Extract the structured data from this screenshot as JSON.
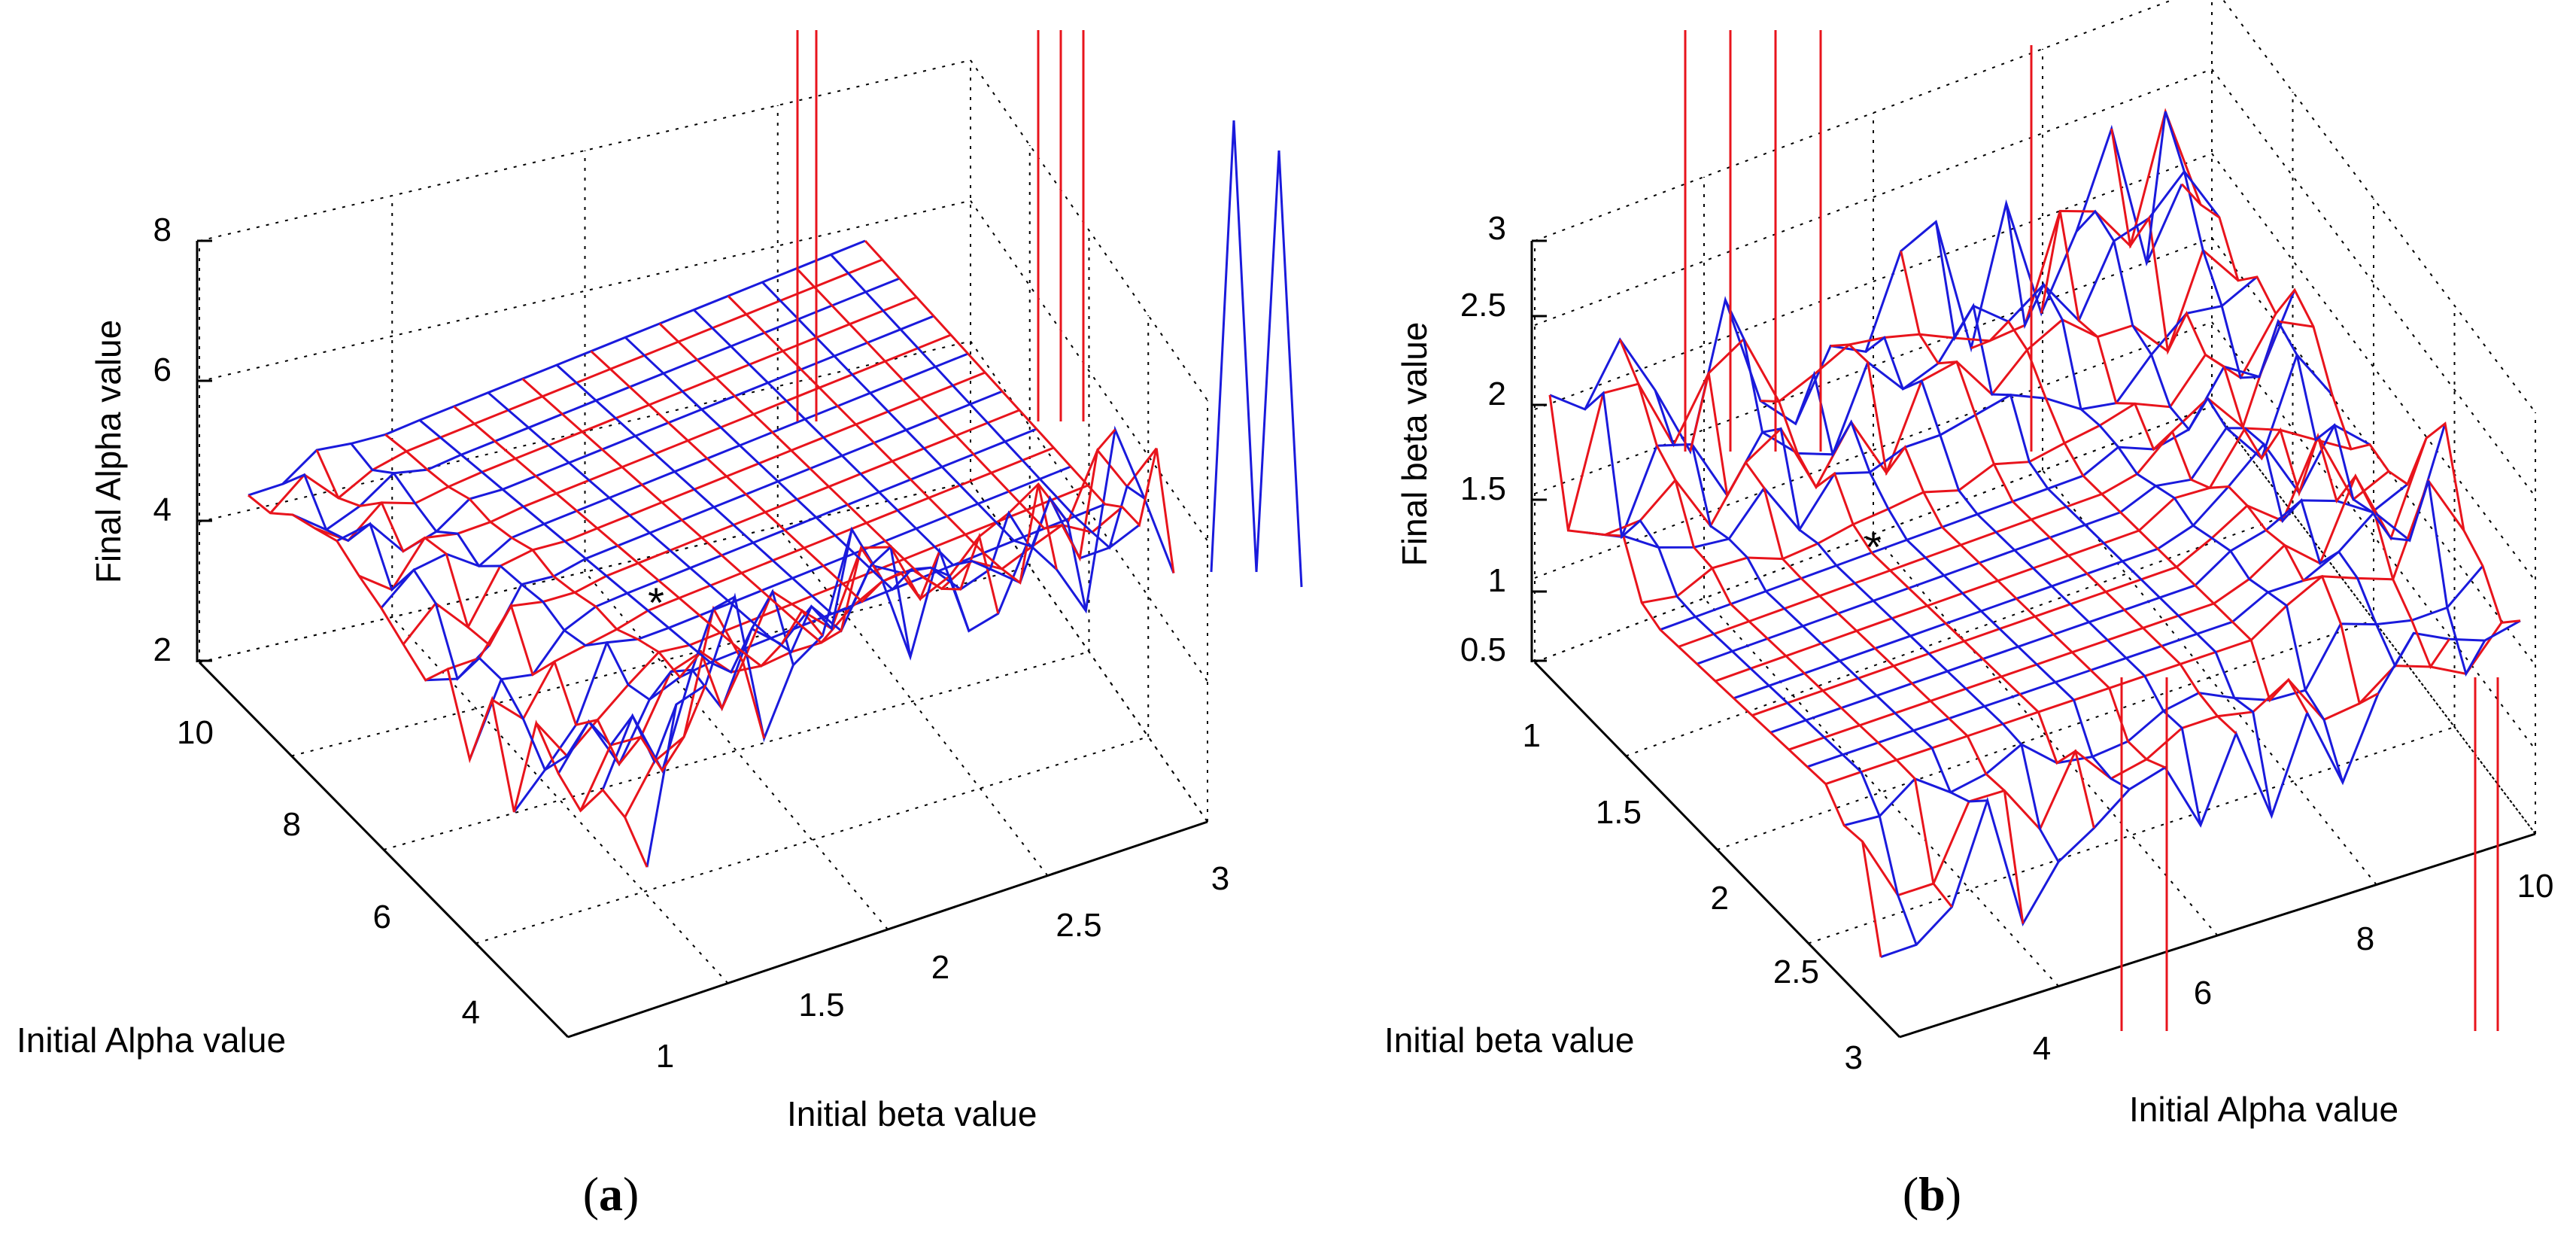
{
  "chart_data": [
    {
      "type": "surface",
      "panel": "a",
      "caption": "(a)",
      "caption_letter": "a",
      "zlabel": "Final Alpha value",
      "xlabel": "Initial beta value",
      "ylabel": "Initial Alpha value",
      "z_ticks": [
        "2",
        "4",
        "6",
        "8"
      ],
      "x_ticks": [
        "1",
        "1.5",
        "2",
        "2.5",
        "3"
      ],
      "y_ticks": [
        "4",
        "6",
        "8",
        "10"
      ],
      "zlim": [
        2,
        8
      ],
      "xlim": [
        0.8,
        3.1
      ],
      "ylim": [
        3,
        11
      ],
      "marker": {
        "label": "*",
        "x": 1.0,
        "y": 6.0,
        "z": 4.2
      },
      "series": [
        {
          "name": "red surface",
          "color": "#e8141c"
        },
        {
          "name": "blue surface",
          "color": "#1a1adc"
        }
      ]
    },
    {
      "type": "surface",
      "panel": "b",
      "caption": "(b)",
      "caption_letter": "b",
      "zlabel": "Final beta value",
      "xlabel": "Initial Alpha value",
      "ylabel": "Initial beta value",
      "z_ticks": [
        "0.5",
        "1",
        "1.5",
        "2",
        "2.5",
        "3"
      ],
      "x_ticks": [
        "4",
        "6",
        "8",
        "10"
      ],
      "y_ticks": [
        "1",
        "1.5",
        "2",
        "2.5",
        "3"
      ],
      "zlim": [
        0.5,
        3
      ],
      "xlim": [
        3,
        11
      ],
      "ylim": [
        0.8,
        3.1
      ],
      "marker": {
        "label": "*",
        "x": 6.0,
        "y": 1.0,
        "z": 1.6
      },
      "series": [
        {
          "name": "red surface",
          "color": "#e8141c"
        },
        {
          "name": "blue surface",
          "color": "#1a1adc"
        }
      ]
    }
  ]
}
